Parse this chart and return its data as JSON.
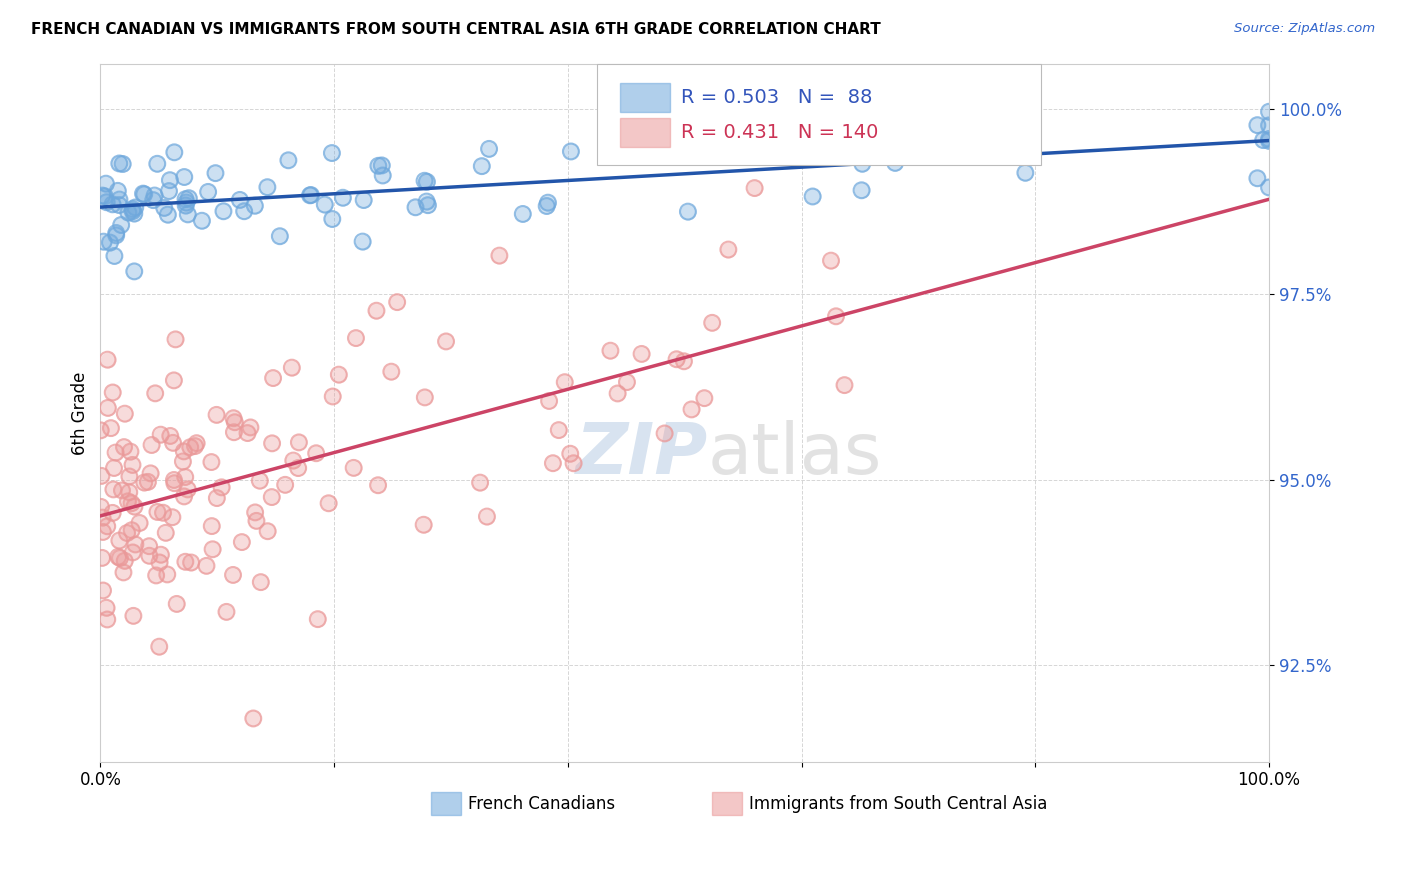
{
  "title": "FRENCH CANADIAN VS IMMIGRANTS FROM SOUTH CENTRAL ASIA 6TH GRADE CORRELATION CHART",
  "source": "Source: ZipAtlas.com",
  "ylabel": "6th Grade",
  "ylabel_tick_vals": [
    92.5,
    95.0,
    97.5,
    100.0
  ],
  "xmin": 0.0,
  "xmax": 100.0,
  "ymin": 91.2,
  "ymax": 100.6,
  "blue_R": 0.503,
  "blue_N": 88,
  "pink_R": 0.431,
  "pink_N": 140,
  "blue_color": "#6fa8dc",
  "pink_color": "#ea9999",
  "trend_blue": "#2255aa",
  "trend_pink": "#cc4466",
  "legend_label_blue": "French Canadians",
  "legend_label_pink": "Immigrants from South Central Asia",
  "watermark_zip": "ZIP",
  "watermark_atlas": "atlas"
}
